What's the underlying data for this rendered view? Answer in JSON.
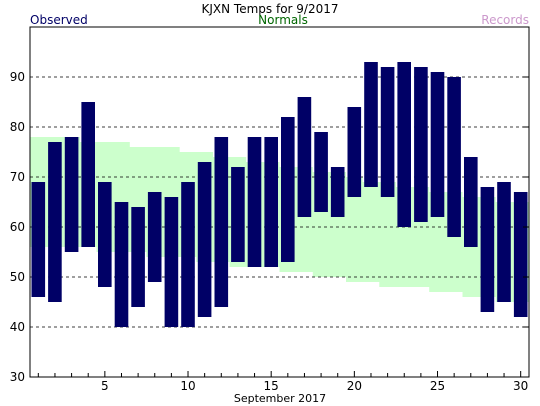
{
  "chart_data": {
    "type": "bar",
    "title": "KJXN Temps for 9/2017",
    "xlabel": "September 2017",
    "ylabel": "",
    "ylim": [
      30,
      100
    ],
    "yticks": [
      30,
      40,
      50,
      60,
      70,
      80,
      90
    ],
    "xlim": [
      0.5,
      30.5
    ],
    "xticks": [
      5,
      10,
      15,
      20,
      25,
      30
    ],
    "grid_y_lines": [
      40,
      50,
      60,
      70,
      80,
      90
    ],
    "legend": {
      "observed_label": "Observed",
      "normals_label": "Normals",
      "records_label": "Records"
    },
    "colors": {
      "observed": "#000066",
      "normals": "#ccffcc",
      "normals_text": "#006600",
      "records_text": "#cc99cc",
      "title_text": "#000000",
      "observed_text": "#000066"
    },
    "days": [
      1,
      2,
      3,
      4,
      5,
      6,
      7,
      8,
      9,
      10,
      11,
      12,
      13,
      14,
      15,
      16,
      17,
      18,
      19,
      20,
      21,
      22,
      23,
      24,
      25,
      26,
      27,
      28,
      29,
      30
    ],
    "observed_high": [
      69,
      77,
      78,
      85,
      69,
      65,
      64,
      67,
      66,
      69,
      73,
      78,
      72,
      78,
      78,
      82,
      86,
      79,
      72,
      84,
      93,
      92,
      93,
      92,
      91,
      90,
      74,
      68,
      69,
      67
    ],
    "observed_low": [
      46,
      45,
      55,
      56,
      48,
      40,
      44,
      49,
      40,
      40,
      42,
      44,
      53,
      52,
      52,
      53,
      62,
      63,
      62,
      66,
      68,
      66,
      60,
      61,
      62,
      58,
      56,
      43,
      45,
      42
    ],
    "normal_high": [
      78,
      78,
      78,
      77,
      77,
      77,
      76,
      76,
      76,
      75,
      75,
      74,
      74,
      73,
      73,
      72,
      72,
      71,
      71,
      70,
      69,
      69,
      68,
      68,
      67,
      67,
      66,
      66,
      65,
      65
    ],
    "normal_low": [
      56,
      56,
      56,
      56,
      55,
      55,
      55,
      54,
      54,
      54,
      53,
      53,
      52,
      52,
      52,
      51,
      51,
      50,
      50,
      49,
      49,
      48,
      48,
      48,
      47,
      47,
      46,
      46,
      45,
      45
    ]
  }
}
